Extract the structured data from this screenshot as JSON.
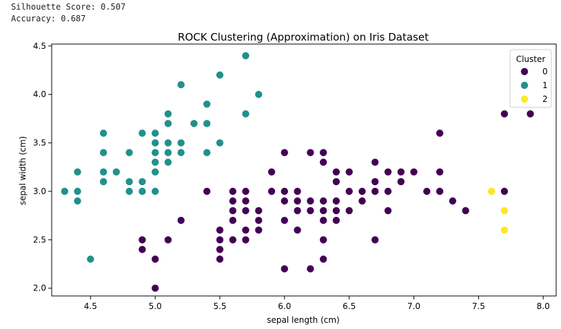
{
  "console": {
    "line1": "Silhouette Score: 0.507",
    "line2": "Accuracy: 0.687"
  },
  "chart_data": {
    "type": "scatter",
    "title": "ROCK Clustering (Approximation) on Iris Dataset",
    "xlabel": "sepal length (cm)",
    "ylabel": "sepal width (cm)",
    "xlim": [
      4.2,
      8.1
    ],
    "ylim": [
      1.92,
      4.52
    ],
    "xticks": [
      4.5,
      5.0,
      5.5,
      6.0,
      6.5,
      7.0,
      7.5,
      8.0
    ],
    "xtick_labels": [
      "4.5",
      "5.0",
      "5.5",
      "6.0",
      "6.5",
      "7.0",
      "7.5",
      "8.0"
    ],
    "yticks": [
      2.0,
      2.5,
      3.0,
      3.5,
      4.0,
      4.5
    ],
    "ytick_labels": [
      "2.0",
      "2.5",
      "3.0",
      "3.5",
      "4.0",
      "4.5"
    ],
    "grid": false,
    "legend": {
      "title": "Cluster",
      "placement": "top-right"
    },
    "series": [
      {
        "name": "0",
        "color": "#440154",
        "points": [
          [
            5.0,
            2.0
          ],
          [
            5.0,
            2.3
          ],
          [
            4.9,
            2.4
          ],
          [
            4.9,
            2.5
          ],
          [
            5.1,
            2.5
          ],
          [
            5.2,
            2.7
          ],
          [
            5.4,
            3.0
          ],
          [
            5.5,
            2.3
          ],
          [
            5.5,
            2.4
          ],
          [
            5.5,
            2.5
          ],
          [
            5.5,
            2.6
          ],
          [
            5.6,
            2.5
          ],
          [
            5.6,
            2.7
          ],
          [
            5.6,
            2.8
          ],
          [
            5.6,
            2.9
          ],
          [
            5.6,
            3.0
          ],
          [
            5.7,
            2.5
          ],
          [
            5.7,
            2.6
          ],
          [
            5.7,
            2.8
          ],
          [
            5.7,
            2.9
          ],
          [
            5.7,
            3.0
          ],
          [
            5.8,
            2.6
          ],
          [
            5.8,
            2.7
          ],
          [
            5.8,
            2.8
          ],
          [
            5.9,
            3.0
          ],
          [
            5.9,
            3.2
          ],
          [
            6.0,
            2.2
          ],
          [
            6.0,
            2.7
          ],
          [
            6.0,
            2.9
          ],
          [
            6.0,
            3.0
          ],
          [
            6.0,
            3.4
          ],
          [
            6.1,
            2.6
          ],
          [
            6.1,
            2.8
          ],
          [
            6.1,
            2.9
          ],
          [
            6.1,
            3.0
          ],
          [
            6.2,
            2.2
          ],
          [
            6.2,
            2.8
          ],
          [
            6.2,
            2.9
          ],
          [
            6.2,
            3.4
          ],
          [
            6.3,
            2.3
          ],
          [
            6.3,
            2.5
          ],
          [
            6.3,
            2.7
          ],
          [
            6.3,
            2.8
          ],
          [
            6.3,
            2.9
          ],
          [
            6.3,
            3.3
          ],
          [
            6.3,
            3.4
          ],
          [
            6.4,
            2.7
          ],
          [
            6.4,
            2.8
          ],
          [
            6.4,
            2.9
          ],
          [
            6.4,
            3.1
          ],
          [
            6.4,
            3.2
          ],
          [
            6.5,
            2.8
          ],
          [
            6.5,
            3.0
          ],
          [
            6.5,
            3.2
          ],
          [
            6.6,
            2.9
          ],
          [
            6.6,
            3.0
          ],
          [
            6.7,
            2.5
          ],
          [
            6.7,
            3.0
          ],
          [
            6.7,
            3.1
          ],
          [
            6.7,
            3.3
          ],
          [
            6.8,
            2.8
          ],
          [
            6.8,
            3.0
          ],
          [
            6.8,
            3.2
          ],
          [
            6.9,
            3.1
          ],
          [
            6.9,
            3.2
          ],
          [
            7.0,
            3.2
          ],
          [
            7.1,
            3.0
          ],
          [
            7.2,
            3.0
          ],
          [
            7.2,
            3.2
          ],
          [
            7.2,
            3.6
          ],
          [
            7.3,
            2.9
          ],
          [
            7.4,
            2.8
          ],
          [
            7.7,
            3.0
          ],
          [
            7.7,
            3.8
          ],
          [
            7.9,
            3.8
          ]
        ]
      },
      {
        "name": "1",
        "color": "#21918c",
        "points": [
          [
            4.3,
            3.0
          ],
          [
            4.4,
            2.9
          ],
          [
            4.4,
            3.0
          ],
          [
            4.4,
            3.2
          ],
          [
            4.5,
            2.3
          ],
          [
            4.6,
            3.1
          ],
          [
            4.6,
            3.2
          ],
          [
            4.6,
            3.4
          ],
          [
            4.6,
            3.6
          ],
          [
            4.7,
            3.2
          ],
          [
            4.8,
            3.0
          ],
          [
            4.8,
            3.1
          ],
          [
            4.8,
            3.4
          ],
          [
            4.9,
            3.0
          ],
          [
            4.9,
            3.1
          ],
          [
            4.9,
            3.6
          ],
          [
            5.0,
            3.0
          ],
          [
            5.0,
            3.2
          ],
          [
            5.0,
            3.3
          ],
          [
            5.0,
            3.4
          ],
          [
            5.0,
            3.5
          ],
          [
            5.0,
            3.6
          ],
          [
            5.1,
            3.3
          ],
          [
            5.1,
            3.4
          ],
          [
            5.1,
            3.5
          ],
          [
            5.1,
            3.7
          ],
          [
            5.1,
            3.8
          ],
          [
            5.2,
            3.4
          ],
          [
            5.2,
            3.5
          ],
          [
            5.2,
            4.1
          ],
          [
            5.3,
            3.7
          ],
          [
            5.4,
            3.4
          ],
          [
            5.4,
            3.7
          ],
          [
            5.4,
            3.9
          ],
          [
            5.5,
            3.5
          ],
          [
            5.5,
            4.2
          ],
          [
            5.7,
            3.8
          ],
          [
            5.7,
            4.4
          ],
          [
            5.8,
            4.0
          ]
        ]
      },
      {
        "name": "2",
        "color": "#fde725",
        "points": [
          [
            7.6,
            3.0
          ],
          [
            7.7,
            2.6
          ],
          [
            7.7,
            2.8
          ]
        ]
      }
    ]
  }
}
